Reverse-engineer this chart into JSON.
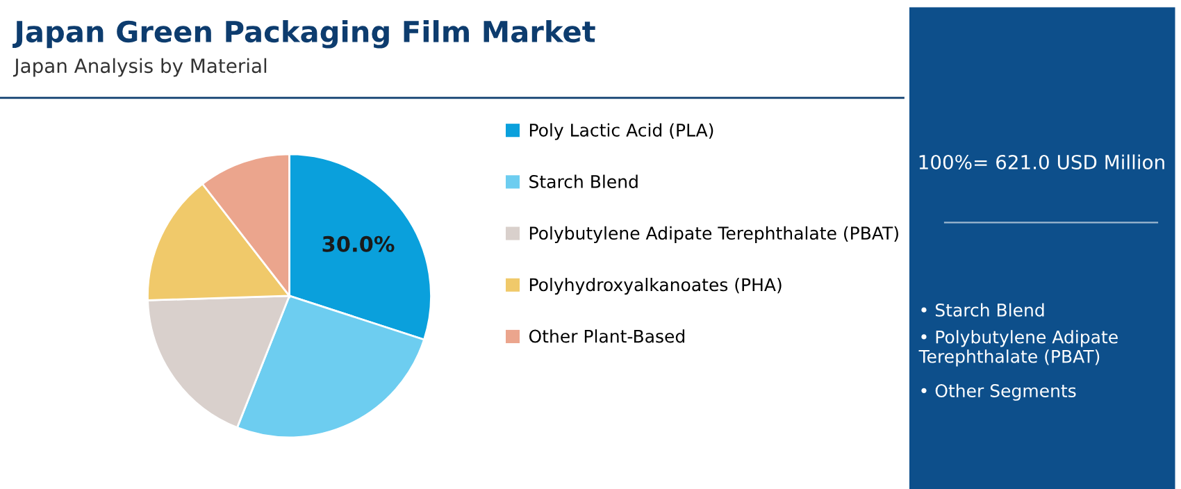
{
  "chart_data": {
    "type": "pie",
    "title": "Japan Green Packaging Film Market",
    "subtitle": "Japan Analysis by Material",
    "categories": [
      "Poly Lactic Acid (PLA)",
      "Starch Blend",
      "Polybutylene Adipate Terephthalate (PBAT)",
      "Polyhydroxyalkanoates (PHA)",
      "Other Plant-Based"
    ],
    "values": [
      30.0,
      26.0,
      18.5,
      15.0,
      10.5
    ],
    "colors": [
      "#0aa0dc",
      "#6dcdf0",
      "#d9d0cc",
      "#f0c96a",
      "#eba58d"
    ],
    "value_labels": [
      "30.0%",
      null,
      null,
      null,
      null
    ],
    "legend": "right",
    "annotations": [
      "100%= 621.0 USD Million",
      "• Starch Blend",
      "• Polybutylene Adipate Terephthalate (PBAT)",
      "• Other Segments"
    ]
  }
}
